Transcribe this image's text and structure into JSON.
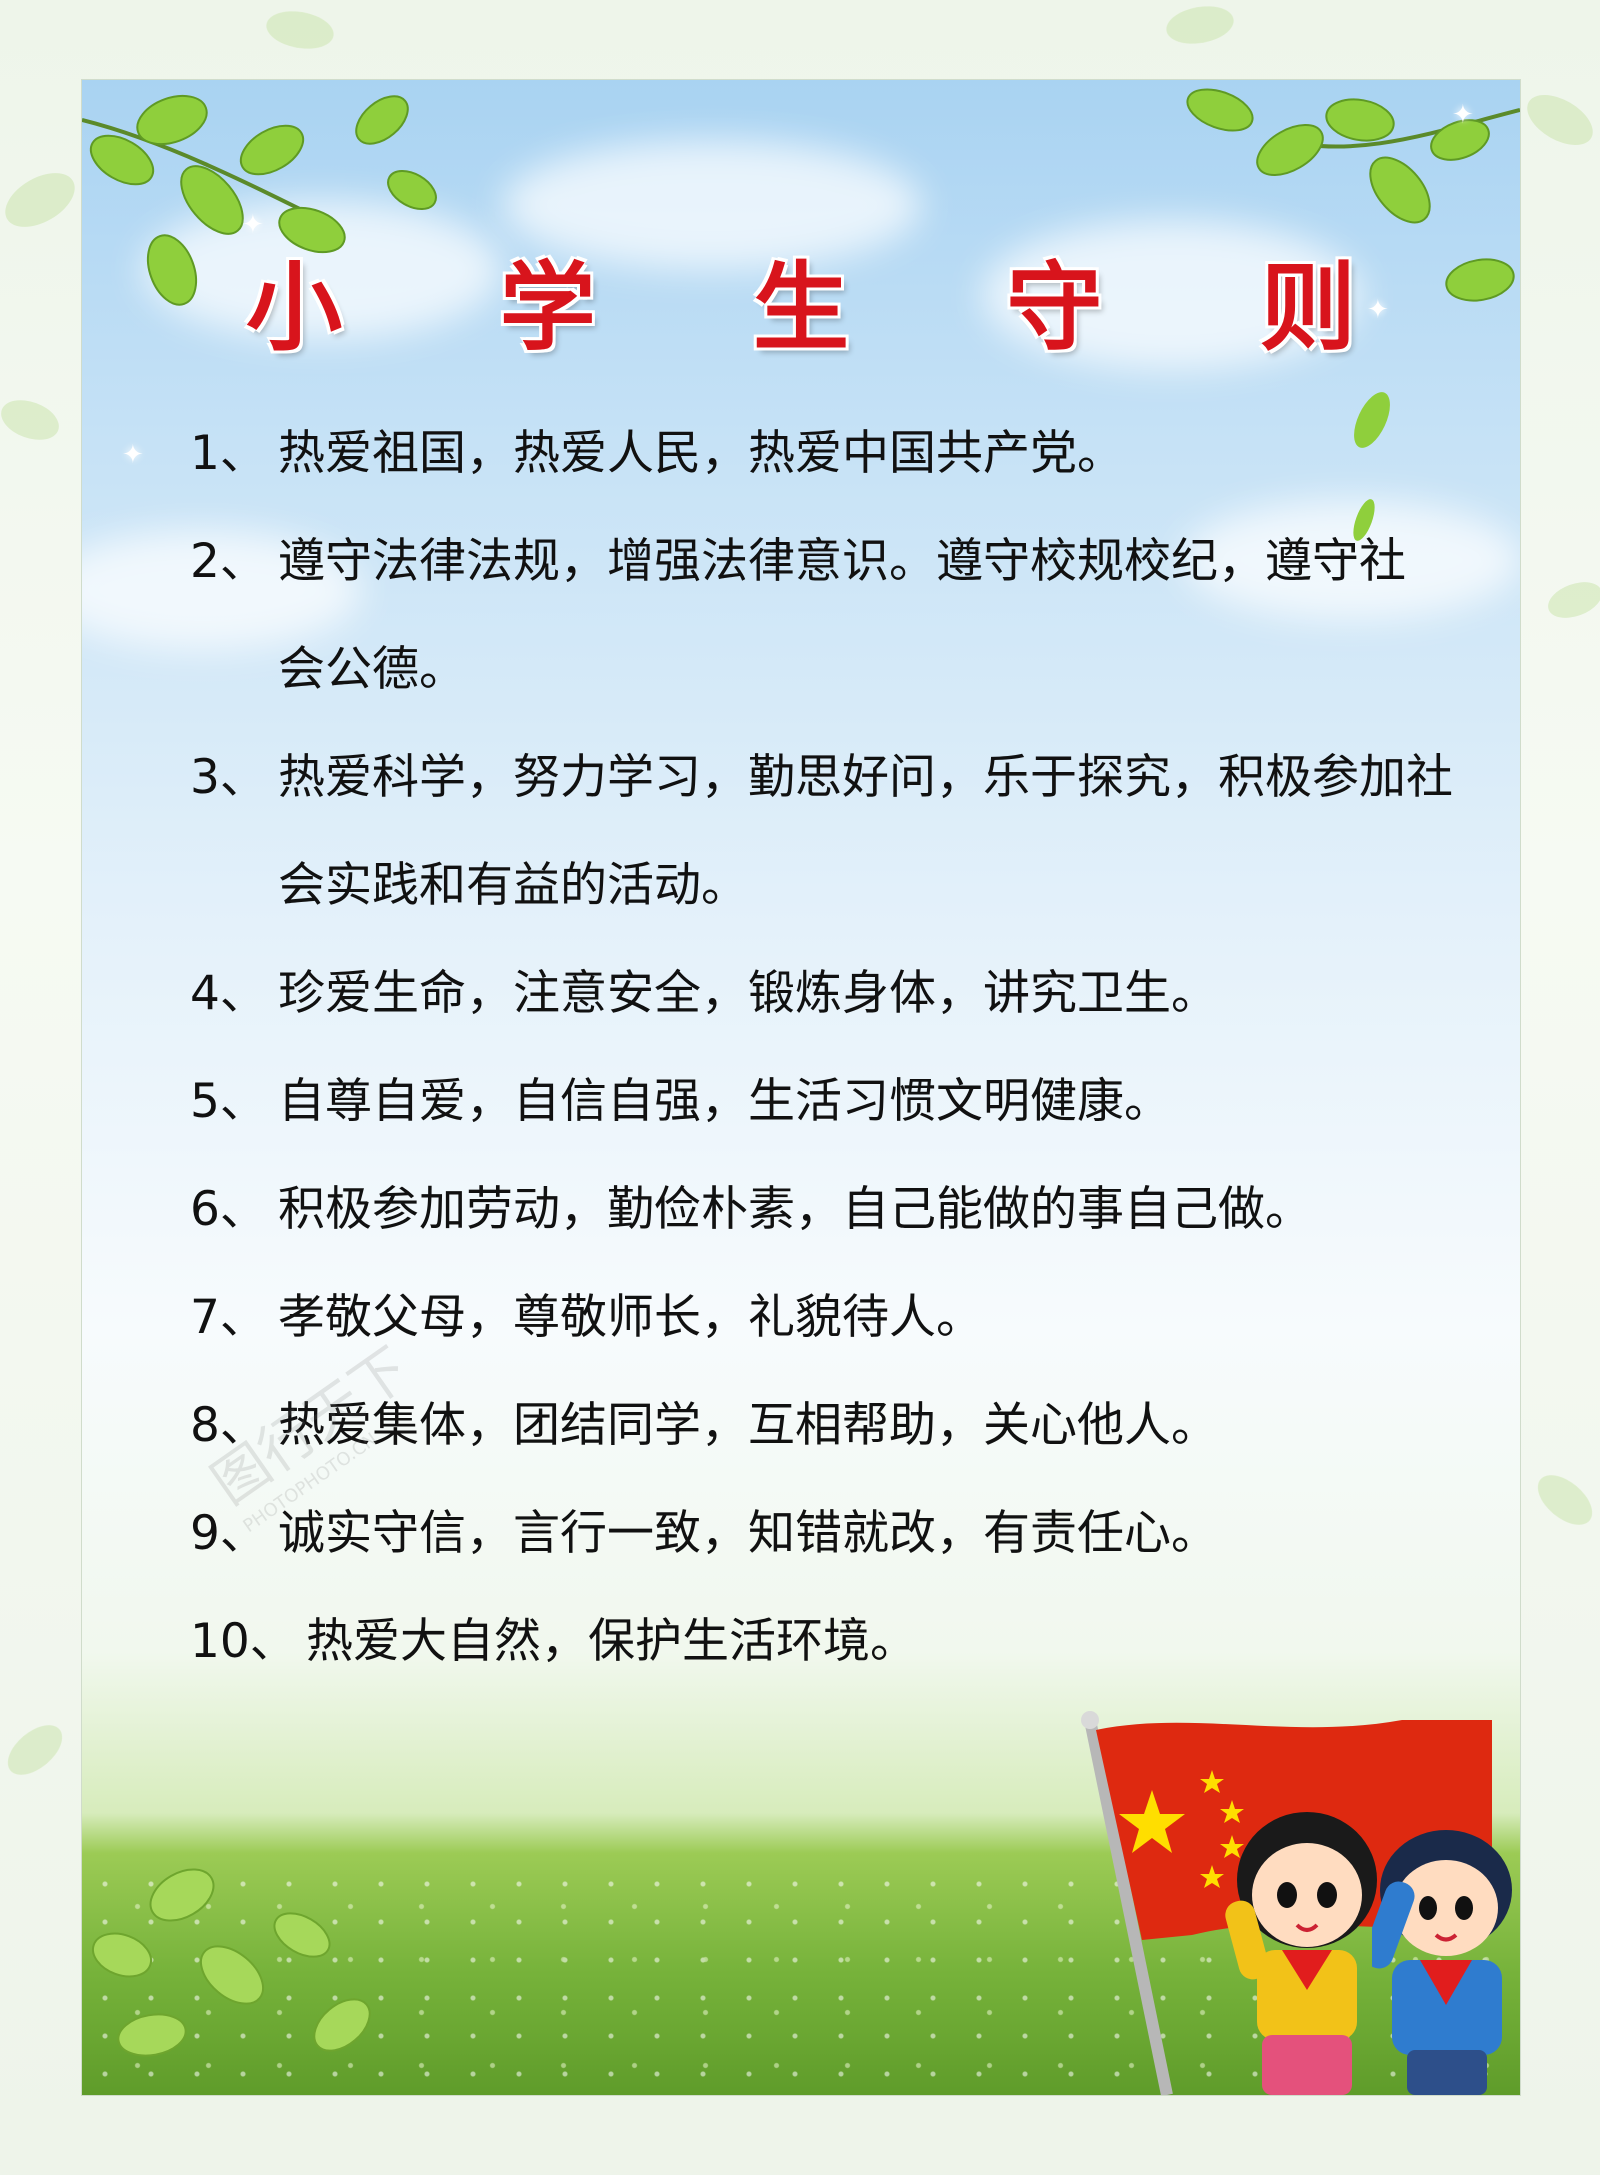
{
  "poster": {
    "title": "小 学 生 守 则",
    "rules": [
      {
        "num": "1、",
        "text": "热爱祖国，热爱人民，热爱中国共产党。"
      },
      {
        "num": "2、",
        "text": "遵守法律法规，增强法律意识。遵守校规校纪，遵守社会公德。"
      },
      {
        "num": "3、",
        "text": "热爱科学，努力学习，勤思好问，乐于探究，积极参加社会实践和有益的活动。"
      },
      {
        "num": "4、",
        "text": "珍爱生命，注意安全，锻炼身体，讲究卫生。"
      },
      {
        "num": "5、",
        "text": "自尊自爱，自信自强，生活习惯文明健康。"
      },
      {
        "num": "6、",
        "text": "积极参加劳动，勤俭朴素，自己能做的事自己做。"
      },
      {
        "num": "7、",
        "text": "孝敬父母，尊敬师长，礼貌待人。"
      },
      {
        "num": "8、",
        "text": "热爱集体，团结同学，互相帮助，关心他人。"
      },
      {
        "num": "9、",
        "text": "诚实守信，言行一致，知错就改，有责任心。"
      },
      {
        "num": "10、",
        "text": "热爱大自然，保护生活环境。"
      }
    ]
  },
  "watermark": {
    "text": "图行天下",
    "subtext": "PHOTOPHOTO.CN"
  },
  "colors": {
    "title": "#d8141c",
    "flag": "#de2910",
    "star": "#ffde00",
    "leaf": "#8fcf3c",
    "sky": "#a9d3f2",
    "grass": "#6aa832"
  },
  "icons": [
    "leaf-cluster-icon",
    "sparkle-icon",
    "flag-icon",
    "star-icon",
    "cartoon-girl-icon",
    "cartoon-boy-icon"
  ]
}
